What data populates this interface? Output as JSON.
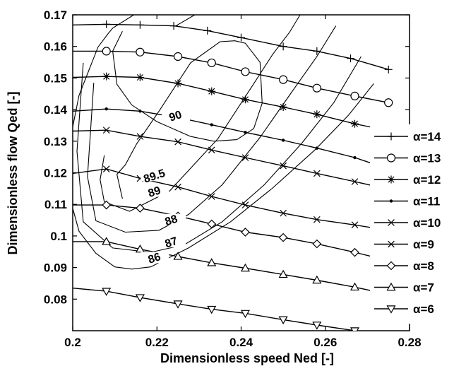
{
  "chart_data": {
    "type": "line",
    "title": "",
    "xlabel": "Dimensionless speed Ned [-]",
    "ylabel": "Dimensionless flow Qed [-]",
    "xlim": [
      0.2,
      0.28
    ],
    "ylim": [
      0.07,
      0.17
    ],
    "xticks": [
      "0.2",
      "0.22",
      "0.24",
      "0.26",
      "0.28"
    ],
    "yticks": [
      "0.08",
      "0.09",
      "0.1",
      "0.11",
      "0.12",
      "0.13",
      "0.14",
      "0.15",
      "0.16",
      "0.17"
    ],
    "grid": false,
    "legend_position": "right",
    "series": [
      {
        "name": "α=14",
        "marker": "plus",
        "x": [
          0.2,
          0.208,
          0.216,
          0.224,
          0.232,
          0.24,
          0.25,
          0.258,
          0.266,
          0.275
        ],
        "y": [
          0.1668,
          0.167,
          0.1668,
          0.1665,
          0.165,
          0.1628,
          0.16,
          0.1585,
          0.1562,
          0.1527
        ]
      },
      {
        "name": "α=13",
        "marker": "circle",
        "x": [
          0.2,
          0.208,
          0.216,
          0.225,
          0.233,
          0.241,
          0.25,
          0.258,
          0.267,
          0.275
        ],
        "y": [
          0.1585,
          0.1585,
          0.1582,
          0.1568,
          0.1548,
          0.152,
          0.1495,
          0.1468,
          0.1443,
          0.1422
        ]
      },
      {
        "name": "α=12",
        "marker": "asterisk",
        "x": [
          0.2,
          0.208,
          0.216,
          0.225,
          0.233,
          0.241,
          0.25,
          0.258,
          0.267,
          0.275
        ],
        "y": [
          0.1502,
          0.1505,
          0.1502,
          0.1483,
          0.1458,
          0.1432,
          0.1408,
          0.1385,
          0.1355,
          0.1333
        ]
      },
      {
        "name": "α=11",
        "marker": "dot",
        "x": [
          0.2,
          0.208,
          0.216,
          0.225,
          0.233,
          0.241,
          0.25,
          0.258,
          0.267,
          0.275
        ],
        "y": [
          0.1395,
          0.1402,
          0.1395,
          0.1375,
          0.1352,
          0.1328,
          0.1303,
          0.1278,
          0.1248,
          0.1212
        ]
      },
      {
        "name": "α=10",
        "marker": "cross",
        "x": [
          0.2,
          0.208,
          0.216,
          0.225,
          0.233,
          0.241,
          0.25,
          0.258,
          0.267,
          0.275
        ],
        "y": [
          0.1332,
          0.1335,
          0.1315,
          0.1298,
          0.1272,
          0.1248,
          0.1222,
          0.1198,
          0.1172,
          0.1148
        ]
      },
      {
        "name": "α=9",
        "marker": "cross",
        "x": [
          0.2,
          0.208,
          0.216,
          0.225,
          0.233,
          0.241,
          0.25,
          0.258,
          0.267,
          0.275
        ],
        "y": [
          0.1198,
          0.1212,
          0.1182,
          0.1155,
          0.1125,
          0.1098,
          0.1072,
          0.1052,
          0.1035,
          0.1018
        ]
      },
      {
        "name": "α=8",
        "marker": "diamond",
        "x": [
          0.2,
          0.208,
          0.216,
          0.225,
          0.233,
          0.241,
          0.25,
          0.258,
          0.267,
          0.275
        ],
        "y": [
          0.1098,
          0.1098,
          0.1088,
          0.1063,
          0.1038,
          0.1012,
          0.0995,
          0.0975,
          0.0948,
          0.0922
        ]
      },
      {
        "name": "α=7",
        "marker": "triangle-up",
        "x": [
          0.2,
          0.208,
          0.216,
          0.225,
          0.233,
          0.241,
          0.25,
          0.258,
          0.267,
          0.275
        ],
        "y": [
          0.0982,
          0.0982,
          0.0958,
          0.0935,
          0.0915,
          0.0898,
          0.0878,
          0.086,
          0.0838,
          0.0815
        ]
      },
      {
        "name": "α=6",
        "marker": "triangle-down",
        "x": [
          0.2,
          0.208,
          0.216,
          0.225,
          0.233,
          0.241,
          0.25,
          0.258,
          0.267
        ],
        "y": [
          0.0835,
          0.0825,
          0.0805,
          0.0785,
          0.0768,
          0.0755,
          0.0735,
          0.0718,
          0.07
        ]
      }
    ],
    "contours": [
      {
        "label": "90",
        "label_at": [
          0.2245,
          0.1375
        ],
        "x": [
          0.2255,
          0.2235,
          0.222,
          0.2245,
          0.2255
        ],
        "y": [
          0.1395,
          0.1392,
          0.1385,
          0.1378,
          0.1395
        ]
      },
      {
        "label": "89.5",
        "label_at": [
          0.2195,
          0.1185
        ],
        "x": [
          0.2118,
          0.2095,
          0.2105,
          0.214,
          0.22,
          0.228,
          0.2335,
          0.239,
          0.243,
          0.245,
          0.2445,
          0.241,
          0.2385,
          0.235,
          0.228,
          0.2205,
          0.2152,
          0.2125,
          0.2105,
          0.2118
        ],
        "y": [
          0.1648,
          0.1585,
          0.148,
          0.1415,
          0.1362,
          0.1315,
          0.13,
          0.1305,
          0.134,
          0.142,
          0.155,
          0.161,
          0.1618,
          0.1615,
          0.1548,
          0.1395,
          0.1292,
          0.1225,
          0.1195,
          0.1118
        ]
      },
      {
        "label": "89",
        "label_at": [
          0.2195,
          0.1135
        ],
        "x": [
          0.2075,
          0.2065,
          0.2075,
          0.2135,
          0.223,
          0.2345,
          0.243,
          0.2475,
          0.2515,
          0.254
        ],
        "y": [
          0.1255,
          0.1178,
          0.1108,
          0.1078,
          0.1142,
          0.1308,
          0.1482,
          0.1575,
          0.1645,
          0.17
        ]
      },
      {
        "label": "88",
        "label_at": [
          0.2235,
          0.1045
        ],
        "x": [
          0.205,
          0.2035,
          0.2055,
          0.2125,
          0.2205,
          0.2275,
          0.2355,
          0.2445,
          0.252,
          0.258,
          0.2625
        ],
        "y": [
          0.1485,
          0.1188,
          0.1048,
          0.1012,
          0.1018,
          0.1068,
          0.1162,
          0.1312,
          0.1455,
          0.1568,
          0.1665
        ]
      },
      {
        "label": "87",
        "label_at": [
          0.2235,
          0.0975
        ],
        "x": [
          0.2025,
          0.201,
          0.2025,
          0.2095,
          0.2185,
          0.2265,
          0.2355,
          0.2455,
          0.2545,
          0.262,
          0.2685
        ],
        "y": [
          0.1548,
          0.1268,
          0.1045,
          0.0962,
          0.0948,
          0.0972,
          0.1045,
          0.1162,
          0.1295,
          0.1422,
          0.1568
        ]
      },
      {
        "label": "86",
        "label_at": [
          0.2195,
          0.0925
        ],
        "x": [
          0.2,
          0.2015,
          0.2055,
          0.21,
          0.214,
          0.2185,
          0.2275,
          0.2375,
          0.2475,
          0.2575,
          0.2655,
          0.2715
        ],
        "y": [
          0.1088,
          0.1015,
          0.0945,
          0.0902,
          0.0895,
          0.0902,
          0.0962,
          0.1045,
          0.1152,
          0.1272,
          0.1382,
          0.1482
        ]
      },
      {
        "label": "",
        "label_at": null,
        "x": [
          0.2,
          0.2015,
          0.206,
          0.2085,
          0.2095,
          0.2145
        ],
        "y": [
          0.1345,
          0.1445,
          0.1598,
          0.1642,
          0.1658,
          0.17
        ]
      },
      {
        "label": "",
        "label_at": null,
        "x": [
          0.2245,
          0.229
        ],
        "y": [
          0.1665,
          0.17
        ]
      }
    ]
  }
}
